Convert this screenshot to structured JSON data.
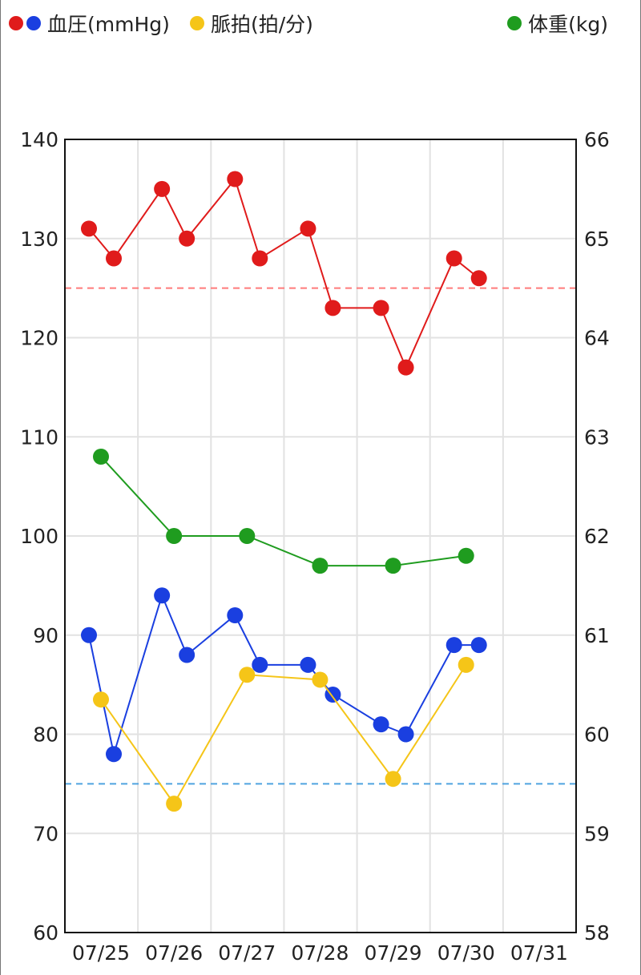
{
  "legend": [
    {
      "label": "血圧(mmHg)",
      "icon": "blood-pressure-dots",
      "colors": [
        "#e01b1b",
        "#1a3fe0"
      ]
    },
    {
      "label": "脈拍(拍/分)",
      "icon": "pulse-dot",
      "colors": [
        "#f5c518"
      ]
    },
    {
      "label": "体重(kg)",
      "icon": "weight-dot",
      "colors": [
        "#1f9c1f"
      ]
    }
  ],
  "chart_data": {
    "type": "line",
    "categories": [
      "07/25",
      "07/26",
      "07/27",
      "07/28",
      "07/29",
      "07/30",
      "07/31"
    ],
    "x_range": [
      "07/25",
      "07/31"
    ],
    "y_left": {
      "range": [
        60,
        140
      ],
      "ticks": [
        60,
        70,
        80,
        90,
        100,
        110,
        120,
        130,
        140
      ]
    },
    "y_right": {
      "range": [
        58,
        66
      ],
      "ticks": [
        58,
        59,
        60,
        61,
        62,
        63,
        64,
        65,
        66
      ]
    },
    "grid": true,
    "reference_lines": [
      {
        "axis": "left",
        "value": 125,
        "color": "#ff7a7a",
        "style": "dashed"
      },
      {
        "axis": "left",
        "value": 75,
        "color": "#4fa3e0",
        "style": "dashed"
      }
    ],
    "series": [
      {
        "key": "systolic",
        "axis": "left",
        "color": "#e01b1b",
        "x": [
          "07/25 morning",
          "07/25 evening",
          "07/26 morning",
          "07/26 evening",
          "07/27 morning",
          "07/27 evening",
          "07/28 morning",
          "07/28 evening",
          "07/29 morning",
          "07/29 evening",
          "07/30 morning",
          "07/30 evening"
        ],
        "values": [
          131,
          128,
          135,
          130,
          136,
          128,
          131,
          123,
          123,
          117,
          128,
          126
        ]
      },
      {
        "key": "diastolic",
        "axis": "left",
        "color": "#1a3fe0",
        "x": [
          "07/25 morning",
          "07/25 evening",
          "07/26 morning",
          "07/26 evening",
          "07/27 morning",
          "07/27 evening",
          "07/28 morning",
          "07/28 evening",
          "07/29 morning",
          "07/29 evening",
          "07/30 morning",
          "07/30 evening"
        ],
        "values": [
          90,
          78,
          94,
          88,
          92,
          87,
          87,
          84,
          81,
          80,
          89,
          89
        ]
      },
      {
        "key": "pulse",
        "axis": "left",
        "color": "#f5c518",
        "x": [
          "07/25",
          "07/26",
          "07/27",
          "07/28",
          "07/29",
          "07/30"
        ],
        "values": [
          83.5,
          73,
          86,
          85.5,
          75.5,
          87
        ]
      },
      {
        "key": "weight",
        "axis": "right",
        "color": "#1f9c1f",
        "x": [
          "07/25",
          "07/26",
          "07/27",
          "07/28",
          "07/29",
          "07/30"
        ],
        "values": [
          62.8,
          62,
          62,
          61.7,
          61.7,
          61.8
        ]
      }
    ]
  }
}
